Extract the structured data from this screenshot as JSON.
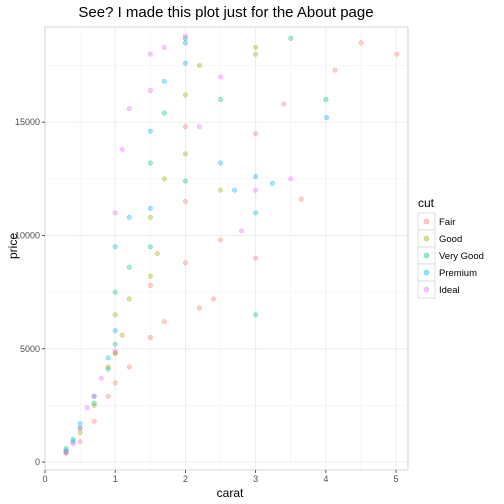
{
  "chart_data": {
    "type": "scatter",
    "title": "See? I made this plot just for the About page",
    "xlabel": "carat",
    "ylabel": "price",
    "xlim": [
      0,
      5.17
    ],
    "ylim": [
      -350,
      19200
    ],
    "x_ticks": [
      0,
      1,
      2,
      3,
      4,
      5
    ],
    "y_ticks": [
      0,
      5000,
      10000,
      15000
    ],
    "x_tick_labels": [
      "0",
      "1",
      "2",
      "3",
      "4",
      "5"
    ],
    "y_tick_labels": [
      "0",
      "5000",
      "10000",
      "15000"
    ],
    "grid": true,
    "point_opacity": 0.35,
    "legend": {
      "title": "cut",
      "placement": "right",
      "entries": [
        {
          "name": "Fair",
          "color": "#F8766D"
        },
        {
          "name": "Good",
          "color": "#A3A500"
        },
        {
          "name": "Very Good",
          "color": "#00BF7D"
        },
        {
          "name": "Premium",
          "color": "#00B0F6"
        },
        {
          "name": "Ideal",
          "color": "#E76BF3"
        }
      ]
    },
    "series": [
      {
        "name": "Fair",
        "color": "#F8766D",
        "points": [
          [
            0.3,
            400
          ],
          [
            0.5,
            900
          ],
          [
            0.7,
            1800
          ],
          [
            0.9,
            2900
          ],
          [
            1.0,
            3500
          ],
          [
            1.0,
            4800
          ],
          [
            1.2,
            4200
          ],
          [
            1.5,
            5500
          ],
          [
            1.5,
            7800
          ],
          [
            1.7,
            6200
          ],
          [
            2.0,
            8800
          ],
          [
            2.0,
            11500
          ],
          [
            2.0,
            14800
          ],
          [
            2.2,
            6800
          ],
          [
            2.4,
            7200
          ],
          [
            2.5,
            9800
          ],
          [
            3.0,
            9000
          ],
          [
            3.0,
            14500
          ],
          [
            3.4,
            15800
          ],
          [
            3.65,
            11600
          ],
          [
            4.13,
            17300
          ],
          [
            4.5,
            18500
          ],
          [
            5.01,
            18000
          ]
        ]
      },
      {
        "name": "Good",
        "color": "#A3A500",
        "points": [
          [
            0.3,
            450
          ],
          [
            0.5,
            1300
          ],
          [
            0.7,
            2500
          ],
          [
            0.9,
            4200
          ],
          [
            1.0,
            4800
          ],
          [
            1.0,
            6500
          ],
          [
            1.1,
            5600
          ],
          [
            1.2,
            7200
          ],
          [
            1.5,
            8200
          ],
          [
            1.5,
            10800
          ],
          [
            1.6,
            9200
          ],
          [
            1.7,
            12500
          ],
          [
            2.0,
            13600
          ],
          [
            2.0,
            16200
          ],
          [
            2.2,
            17500
          ],
          [
            2.5,
            12000
          ],
          [
            3.0,
            18000
          ],
          [
            3.0,
            18300
          ]
        ]
      },
      {
        "name": "Very Good",
        "color": "#00BF7D",
        "points": [
          [
            0.3,
            600
          ],
          [
            0.4,
            1000
          ],
          [
            0.5,
            1500
          ],
          [
            0.7,
            2600
          ],
          [
            0.9,
            4100
          ],
          [
            1.0,
            5200
          ],
          [
            1.0,
            7500
          ],
          [
            1.2,
            8600
          ],
          [
            1.5,
            9500
          ],
          [
            1.5,
            13200
          ],
          [
            1.7,
            15400
          ],
          [
            2.0,
            12400
          ],
          [
            2.0,
            18700
          ],
          [
            2.5,
            16000
          ],
          [
            3.0,
            6500
          ],
          [
            3.5,
            18700
          ],
          [
            4.0,
            16000
          ]
        ]
      },
      {
        "name": "Premium",
        "color": "#00B0F6",
        "points": [
          [
            0.3,
            500
          ],
          [
            0.4,
            900
          ],
          [
            0.5,
            1700
          ],
          [
            0.7,
            2900
          ],
          [
            0.9,
            4600
          ],
          [
            1.0,
            5800
          ],
          [
            1.0,
            9500
          ],
          [
            1.2,
            10800
          ],
          [
            1.5,
            11200
          ],
          [
            1.5,
            14600
          ],
          [
            1.7,
            16800
          ],
          [
            2.0,
            17600
          ],
          [
            2.0,
            18500
          ],
          [
            2.5,
            13200
          ],
          [
            2.7,
            12000
          ],
          [
            3.0,
            11000
          ],
          [
            3.0,
            12600
          ],
          [
            3.24,
            12300
          ],
          [
            4.01,
            15200
          ]
        ]
      },
      {
        "name": "Ideal",
        "color": "#E76BF3",
        "points": [
          [
            0.3,
            400
          ],
          [
            0.4,
            800
          ],
          [
            0.5,
            1500
          ],
          [
            0.6,
            2400
          ],
          [
            0.7,
            2900
          ],
          [
            0.8,
            3700
          ],
          [
            1.0,
            4900
          ],
          [
            1.0,
            11000
          ],
          [
            1.1,
            13800
          ],
          [
            1.2,
            15600
          ],
          [
            1.5,
            16400
          ],
          [
            1.5,
            18000
          ],
          [
            1.7,
            18300
          ],
          [
            2.0,
            18800
          ],
          [
            2.2,
            14800
          ],
          [
            2.5,
            17000
          ],
          [
            2.8,
            10200
          ],
          [
            3.0,
            12000
          ],
          [
            3.5,
            12500
          ]
        ]
      }
    ]
  }
}
